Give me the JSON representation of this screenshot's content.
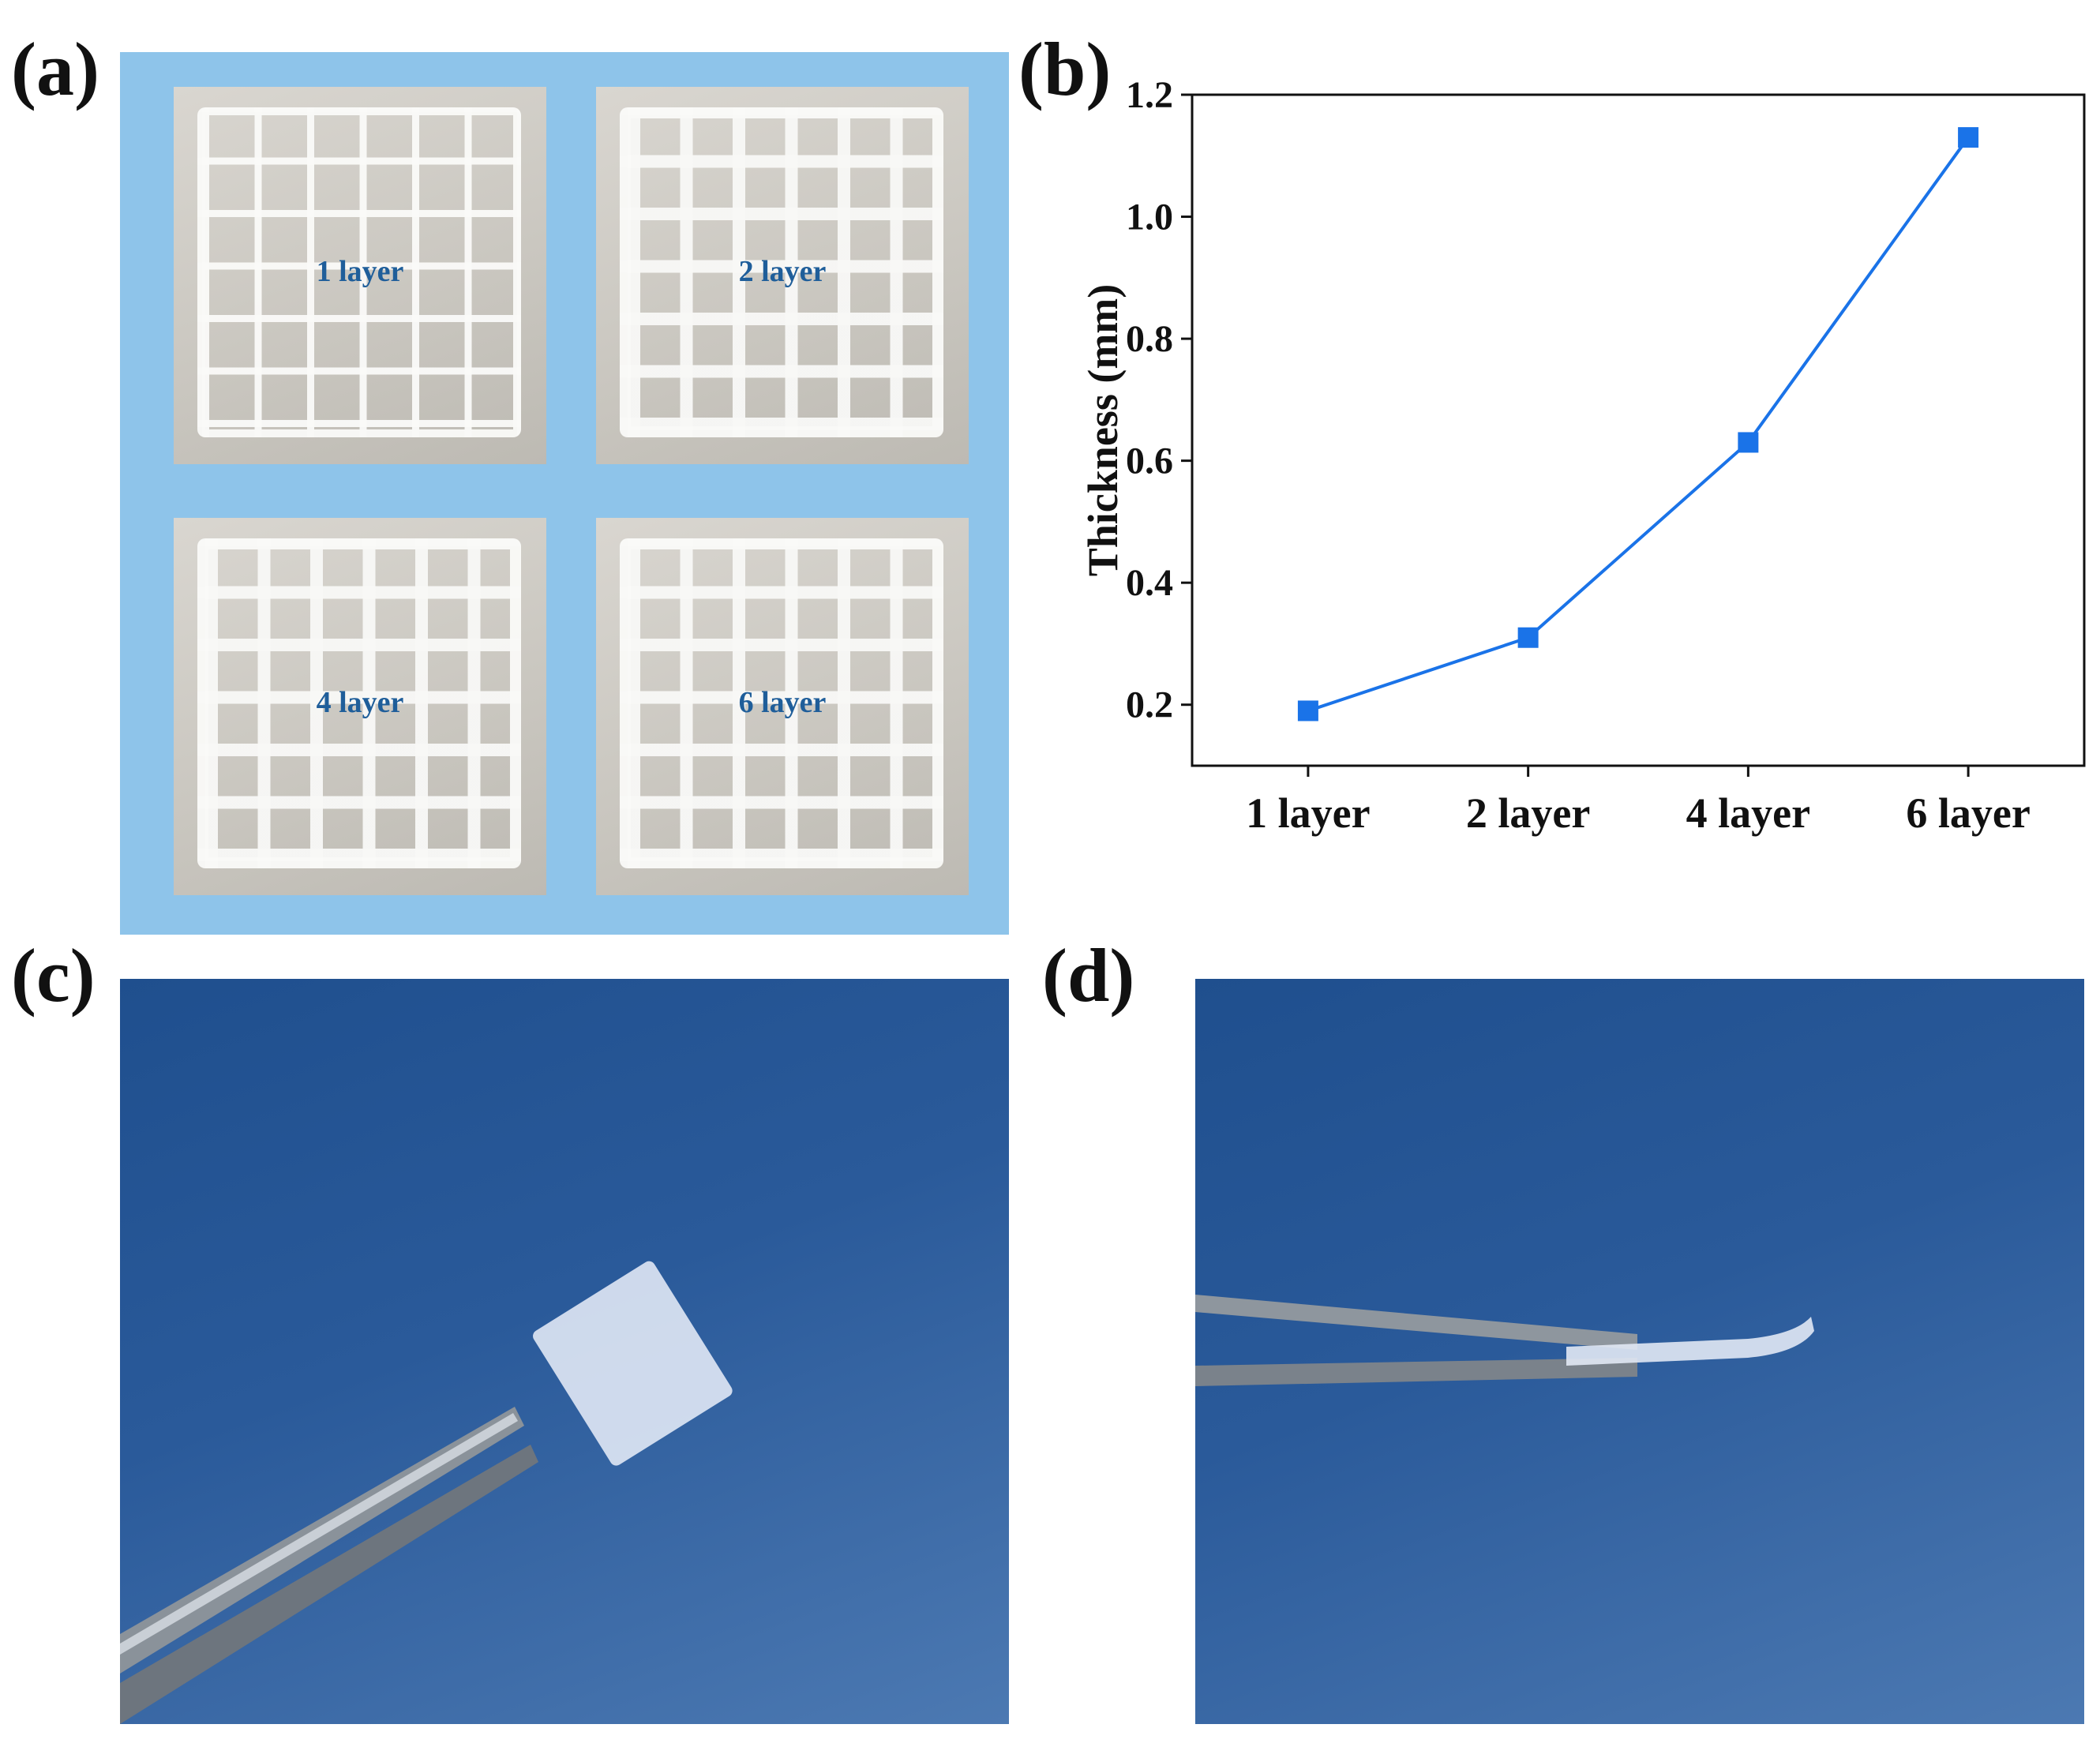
{
  "panels": {
    "a": {
      "label": "(a)",
      "tiles": [
        "1 layer",
        "2 layer",
        "4 layer",
        "6 layer"
      ]
    },
    "b": {
      "label": "(b)"
    },
    "c": {
      "label": "(c)"
    },
    "d": {
      "label": "(d)"
    }
  },
  "chart_data": {
    "type": "line",
    "categories": [
      "1 layer",
      "2 layer",
      "4 layer",
      "6 layer"
    ],
    "series": [
      {
        "values": [
          0.19,
          0.31,
          0.63,
          1.13
        ],
        "color": "#1a73e8",
        "marker": "square"
      }
    ],
    "ylabel": "Thickness (mm)",
    "xlabel": "",
    "ylim": [
      0.1,
      1.2
    ],
    "yticks": [
      0.2,
      0.4,
      0.6,
      0.8,
      1.0,
      1.2
    ],
    "grid": false,
    "legend": false
  }
}
